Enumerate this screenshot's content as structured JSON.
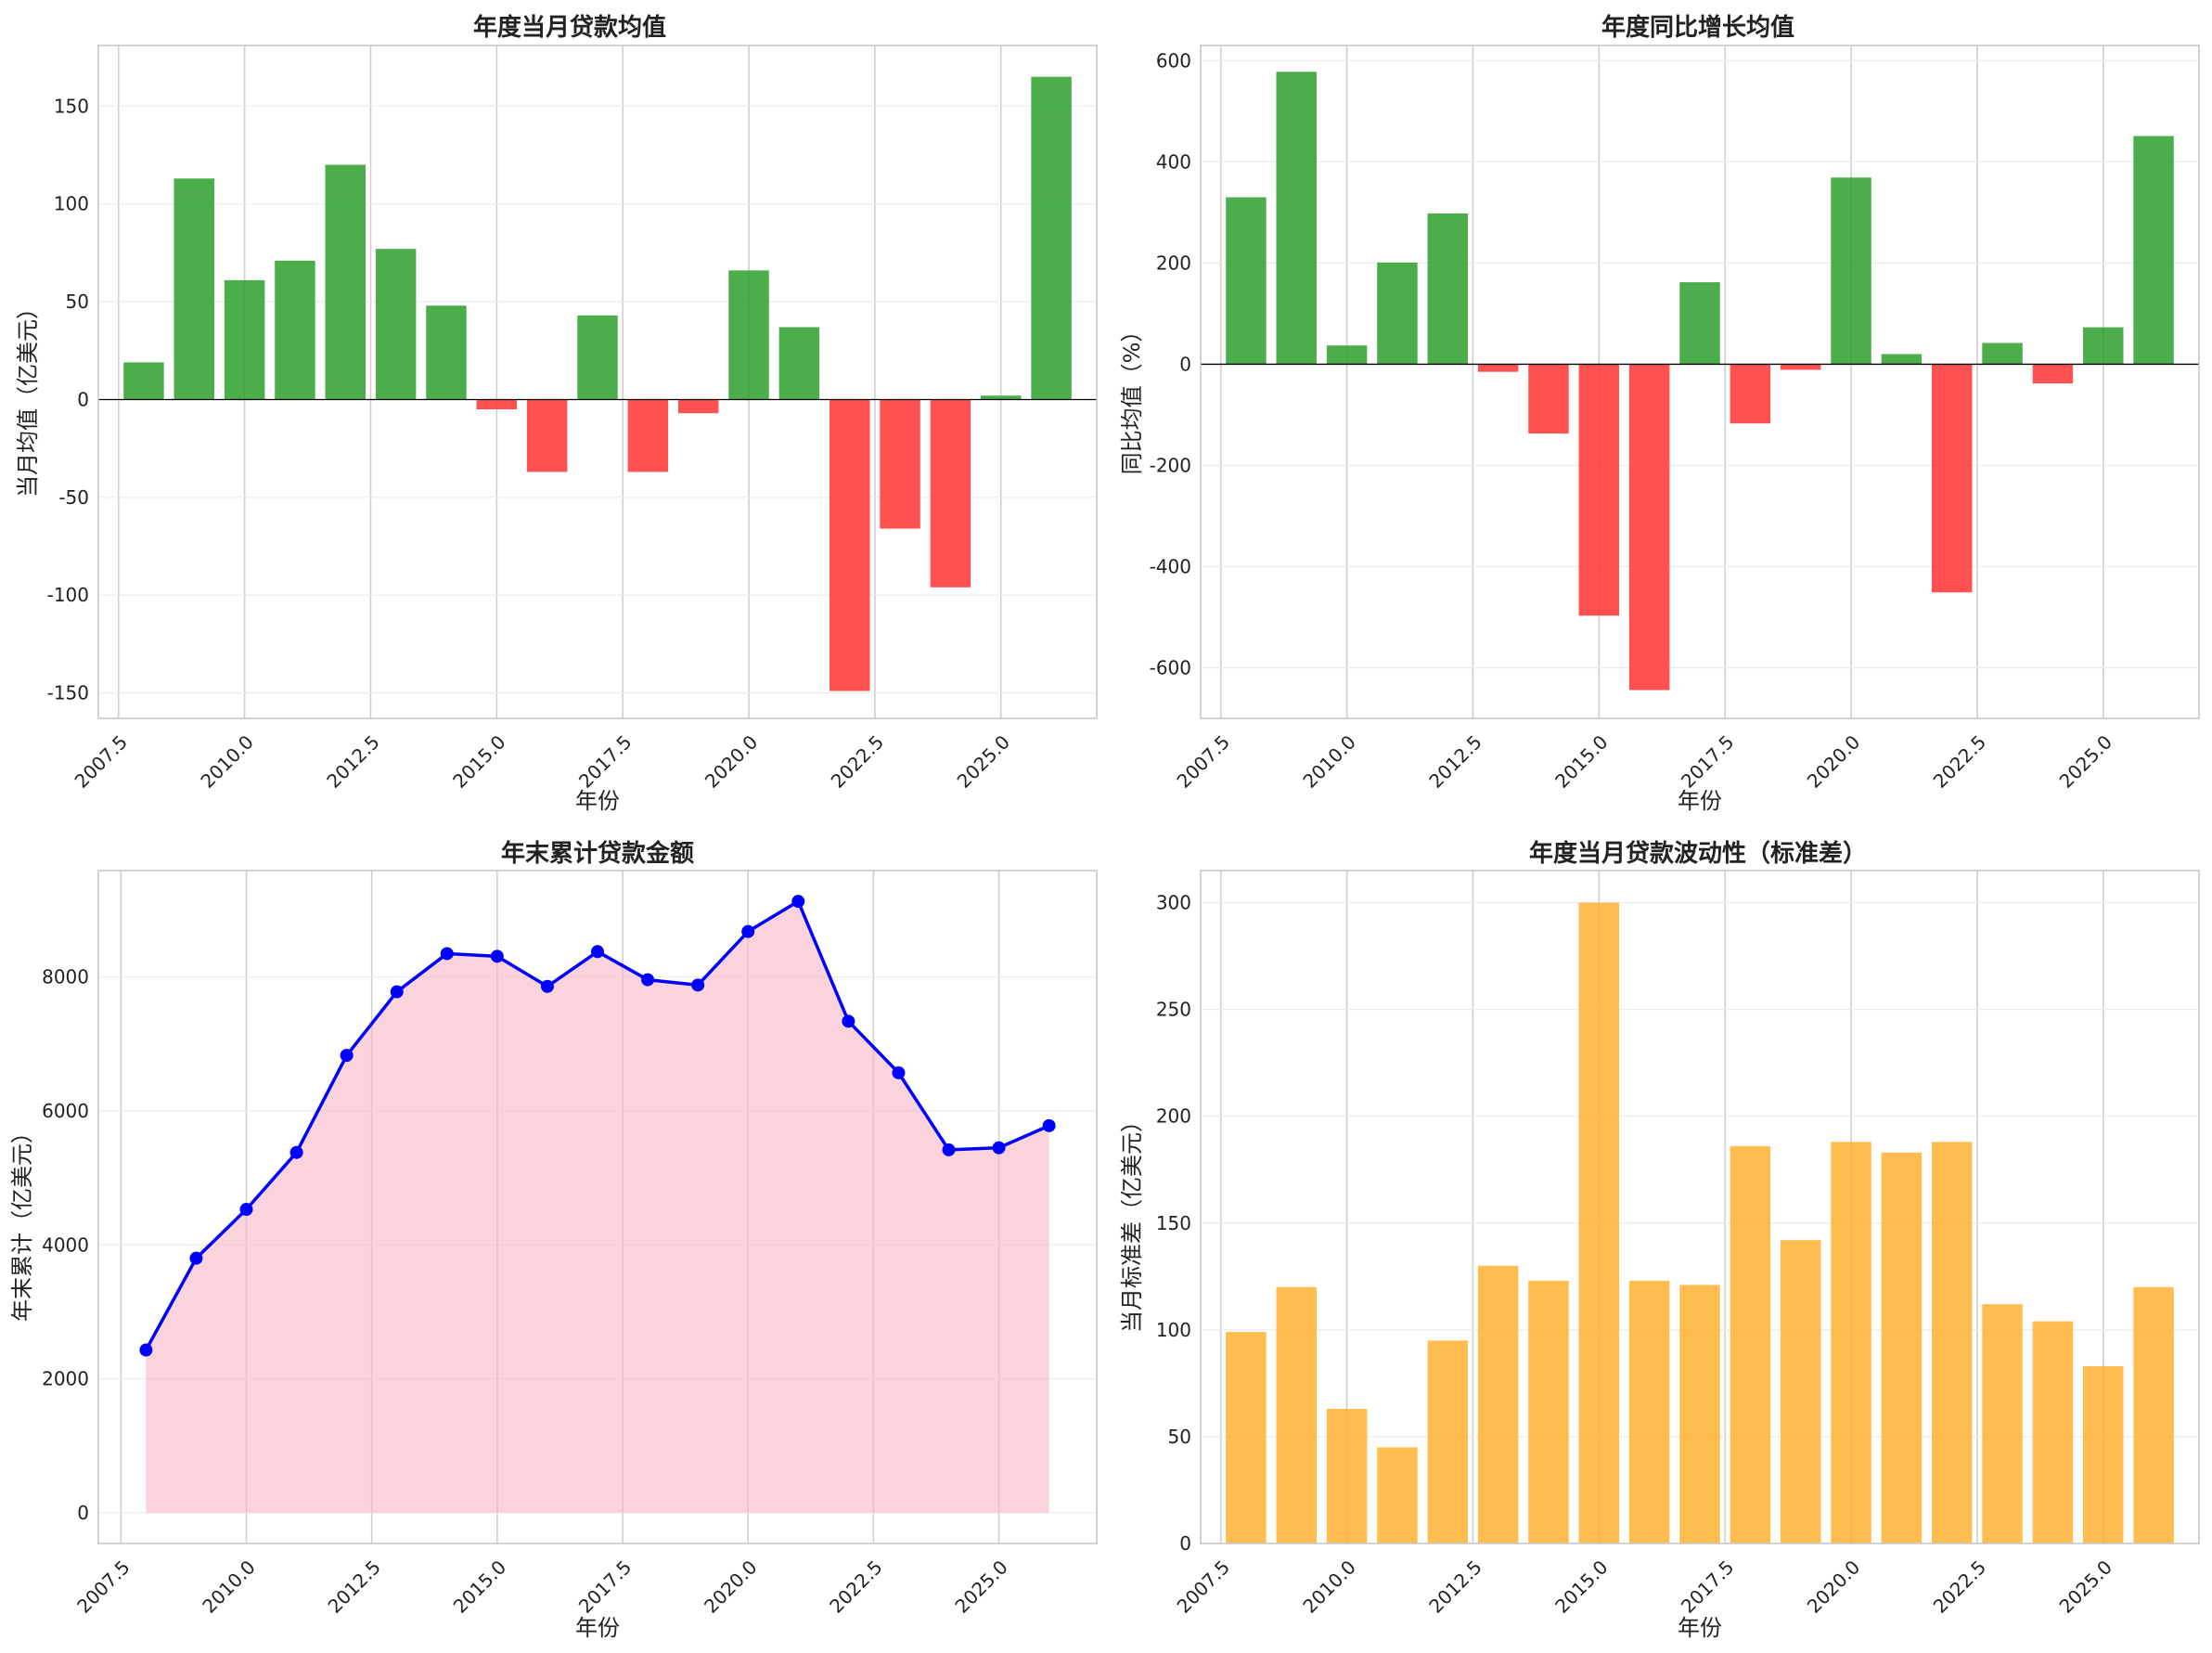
{
  "chart_data": [
    {
      "type": "bar",
      "title": "年度当月贷款均值",
      "xlabel": "年份",
      "ylabel": "当月均值（亿美元）",
      "x": [
        2008,
        2009,
        2010,
        2011,
        2012,
        2013,
        2014,
        2015,
        2016,
        2017,
        2018,
        2019,
        2020,
        2021,
        2022,
        2023,
        2024,
        2025,
        2026
      ],
      "values": [
        19,
        113,
        61,
        71,
        120,
        77,
        48,
        -5,
        -37,
        43,
        -37,
        -7,
        66,
        37,
        -149,
        -66,
        -96,
        2,
        165
      ],
      "xlim": [
        2007.1,
        2026.9
      ],
      "ylim": [
        -163,
        181
      ],
      "yticks": [
        -150,
        -100,
        -50,
        0,
        50,
        100,
        150
      ],
      "ytick_labels": [
        "-150",
        "-100",
        "-50",
        "0",
        "50",
        "100",
        "150"
      ],
      "xticks": [
        2007.5,
        2010.0,
        2012.5,
        2015.0,
        2017.5,
        2020.0,
        2022.5,
        2025.0
      ],
      "xtick_labels": [
        "2007.5",
        "2010.0",
        "2012.5",
        "2015.0",
        "2017.5",
        "2020.0",
        "2022.5",
        "2025.0"
      ],
      "positive_color": "#2ca02c",
      "negative_color": "#ff3333",
      "zero_line": true
    },
    {
      "type": "bar",
      "title": "年度同比增长均值",
      "xlabel": "年份",
      "ylabel": "同比均值（%）",
      "x": [
        2008,
        2009,
        2010,
        2011,
        2012,
        2013,
        2014,
        2015,
        2016,
        2017,
        2018,
        2019,
        2020,
        2021,
        2022,
        2023,
        2024,
        2025,
        2026
      ],
      "values": [
        330,
        578,
        37,
        201,
        298,
        -15,
        -137,
        -497,
        -644,
        162,
        -117,
        -11,
        369,
        20,
        -451,
        42,
        -38,
        73,
        451
      ],
      "xlim": [
        2007.1,
        2026.9
      ],
      "ylim": [
        -700,
        630
      ],
      "yticks": [
        -600,
        -400,
        -200,
        0,
        200,
        400,
        600
      ],
      "ytick_labels": [
        "-600",
        "-400",
        "-200",
        "0",
        "200",
        "400",
        "600"
      ],
      "xticks": [
        2007.5,
        2010.0,
        2012.5,
        2015.0,
        2017.5,
        2020.0,
        2022.5,
        2025.0
      ],
      "xtick_labels": [
        "2007.5",
        "2010.0",
        "2012.5",
        "2015.0",
        "2017.5",
        "2020.0",
        "2022.5",
        "2025.0"
      ],
      "positive_color": "#2ca02c",
      "negative_color": "#ff3333",
      "zero_line": true
    },
    {
      "type": "area",
      "title": "年末累计贷款金额",
      "xlabel": "年份",
      "ylabel": "年末累计（亿美元）",
      "x": [
        2008,
        2009,
        2010,
        2011,
        2012,
        2013,
        2014,
        2015,
        2016,
        2017,
        2018,
        2019,
        2020,
        2021,
        2022,
        2023,
        2024,
        2025,
        2026
      ],
      "values": [
        2430,
        3800,
        4530,
        5380,
        6830,
        7780,
        8350,
        8310,
        7860,
        8380,
        7960,
        7880,
        8680,
        9130,
        7340,
        6570,
        5420,
        5450,
        5780
      ],
      "xlim": [
        2007.05,
        2026.95
      ],
      "ylim": [
        -460,
        9590
      ],
      "yticks": [
        0,
        2000,
        4000,
        6000,
        8000
      ],
      "ytick_labels": [
        "0",
        "2000",
        "4000",
        "6000",
        "8000"
      ],
      "xticks": [
        2007.5,
        2010.0,
        2012.5,
        2015.0,
        2017.5,
        2020.0,
        2022.5,
        2025.0
      ],
      "xtick_labels": [
        "2007.5",
        "2010.0",
        "2012.5",
        "2015.0",
        "2017.5",
        "2020.0",
        "2022.5",
        "2025.0"
      ],
      "line_color": "#0000ff",
      "fill_color": "#f7b6c6"
    },
    {
      "type": "bar",
      "title": "年度当月贷款波动性（标准差）",
      "xlabel": "年份",
      "ylabel": "当月标准差（亿美元）",
      "x": [
        2008,
        2009,
        2010,
        2011,
        2012,
        2013,
        2014,
        2015,
        2016,
        2017,
        2018,
        2019,
        2020,
        2021,
        2022,
        2023,
        2024,
        2025,
        2026
      ],
      "values": [
        99,
        120,
        63,
        45,
        95,
        130,
        123,
        300,
        123,
        121,
        186,
        142,
        188,
        183,
        188,
        112,
        104,
        83,
        120
      ],
      "xlim": [
        2007.1,
        2026.9
      ],
      "ylim": [
        0,
        315
      ],
      "yticks": [
        0,
        50,
        100,
        150,
        200,
        250,
        300
      ],
      "ytick_labels": [
        "0",
        "50",
        "100",
        "150",
        "200",
        "250",
        "300"
      ],
      "xticks": [
        2007.5,
        2010.0,
        2012.5,
        2015.0,
        2017.5,
        2020.0,
        2022.5,
        2025.0
      ],
      "xtick_labels": [
        "2007.5",
        "2010.0",
        "2012.5",
        "2015.0",
        "2017.5",
        "2020.0",
        "2022.5",
        "2025.0"
      ],
      "positive_color": "#ffb030",
      "negative_color": "#ffb030",
      "zero_line": false
    }
  ]
}
